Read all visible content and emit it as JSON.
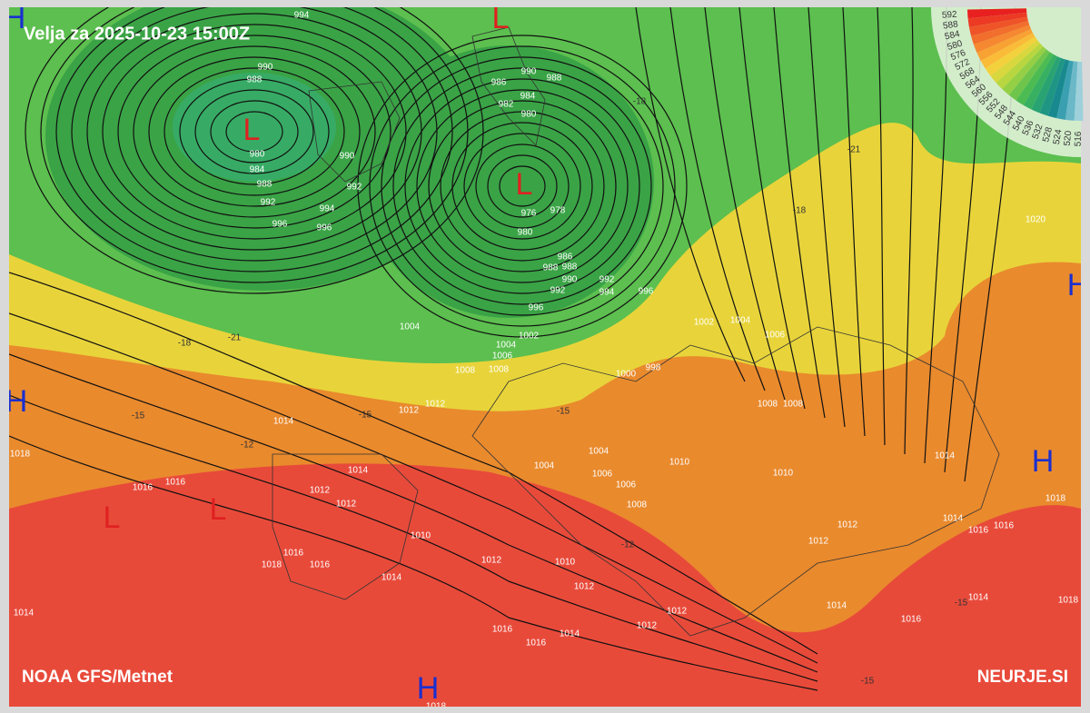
{
  "title": "Velja za 2025-10-23 15:00Z",
  "source": "NOAA GFS/Metnet",
  "site": "NEURJE.SI",
  "legend": [
    592,
    588,
    584,
    580,
    576,
    572,
    568,
    564,
    560,
    556,
    552,
    548,
    544,
    540,
    536,
    532,
    528,
    524,
    520,
    516
  ],
  "centers": [
    "L",
    "L",
    "L",
    "L",
    "L",
    "H",
    "H",
    "H",
    "H",
    "H"
  ],
  "isobar_labels": [
    994,
    990,
    988,
    980,
    984,
    988,
    992,
    996,
    990,
    992,
    994,
    996,
    990,
    988,
    986,
    984,
    982,
    980,
    976,
    978,
    980,
    986,
    988,
    988,
    990,
    992,
    994,
    996,
    992,
    996,
    1004,
    1002,
    1004,
    1006,
    1008,
    1008,
    1012,
    1012,
    1014,
    1018,
    1016,
    1016,
    1014,
    1012,
    1012,
    1010,
    1016,
    1018,
    1016,
    1014,
    1012,
    1010,
    1012,
    1012,
    1012,
    1016,
    1016,
    1014,
    1014,
    1018,
    1020,
    1004,
    1006,
    1008,
    1008,
    1010,
    1014,
    1018,
    1014,
    1016,
    1016,
    1012,
    1012,
    1014,
    1016,
    1014,
    1018,
    1004,
    1004,
    1006,
    1006,
    1008,
    1010,
    1002,
    1000,
    998
  ],
  "temperature_labels": [
    -18,
    -21,
    -15,
    -15,
    -12,
    -15,
    -12,
    -15,
    -15,
    -18,
    -21,
    -18
  ]
}
